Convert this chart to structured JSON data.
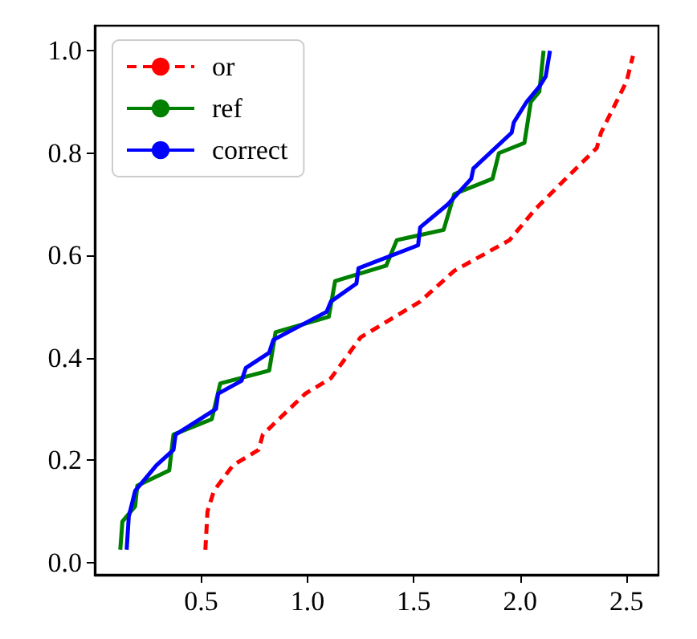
{
  "chart_data": {
    "type": "line",
    "xlim": [
      0.0,
      2.65
    ],
    "ylim": [
      -0.024,
      1.049
    ],
    "xticks": [
      0.5,
      {
        "value": 1,
        "label": "1.0"
      },
      1.5,
      {
        "value": 2,
        "label": "2.0"
      },
      2.5
    ],
    "yticks": [
      {
        "value": 0,
        "label": "0.0"
      },
      0.2,
      0.4,
      0.6,
      0.8,
      {
        "value": 1,
        "label": "1.0"
      }
    ],
    "grid": false,
    "legend": "top left",
    "series": [
      {
        "name": "or",
        "color": "#ff0000",
        "line_style": "dashed",
        "x": [
          0.52,
          0.53,
          0.56,
          0.65,
          0.77,
          0.79,
          0.99,
          1.11,
          1.25,
          1.53,
          1.69,
          1.95,
          2.07,
          2.19,
          2.36,
          2.38,
          2.44,
          2.5,
          2.53
        ],
        "values": [
          0.025,
          0.1,
          0.14,
          0.19,
          0.22,
          0.25,
          0.33,
          0.36,
          0.44,
          0.51,
          0.57,
          0.63,
          0.69,
          0.74,
          0.81,
          0.84,
          0.89,
          0.94,
          0.99
        ]
      },
      {
        "name": "ref",
        "color": "#008000",
        "line_style": "solid",
        "x": [
          0.12,
          0.13,
          0.19,
          0.2,
          0.35,
          0.37,
          0.55,
          0.59,
          0.82,
          0.85,
          1.1,
          1.13,
          1.37,
          1.42,
          1.64,
          1.69,
          1.87,
          1.9,
          2.02,
          2.05,
          2.09,
          2.11
        ],
        "values": [
          0.025,
          0.08,
          0.11,
          0.15,
          0.18,
          0.25,
          0.28,
          0.35,
          0.375,
          0.45,
          0.48,
          0.55,
          0.58,
          0.63,
          0.65,
          0.72,
          0.75,
          0.8,
          0.82,
          0.9,
          0.92,
          1.0
        ]
      },
      {
        "name": "correct",
        "color": "#0000ff",
        "line_style": "solid",
        "x": [
          0.15,
          0.16,
          0.19,
          0.29,
          0.37,
          0.38,
          0.57,
          0.58,
          0.69,
          0.71,
          0.82,
          0.84,
          1.09,
          1.11,
          1.23,
          1.24,
          1.52,
          1.53,
          1.66,
          1.77,
          1.78,
          1.96,
          1.97,
          2.03,
          2.09,
          2.12,
          2.14
        ],
        "values": [
          0.025,
          0.09,
          0.14,
          0.19,
          0.22,
          0.25,
          0.3,
          0.33,
          0.355,
          0.38,
          0.41,
          0.435,
          0.49,
          0.51,
          0.545,
          0.575,
          0.62,
          0.655,
          0.7,
          0.75,
          0.77,
          0.84,
          0.86,
          0.9,
          0.93,
          0.95,
          1.0
        ]
      }
    ]
  }
}
